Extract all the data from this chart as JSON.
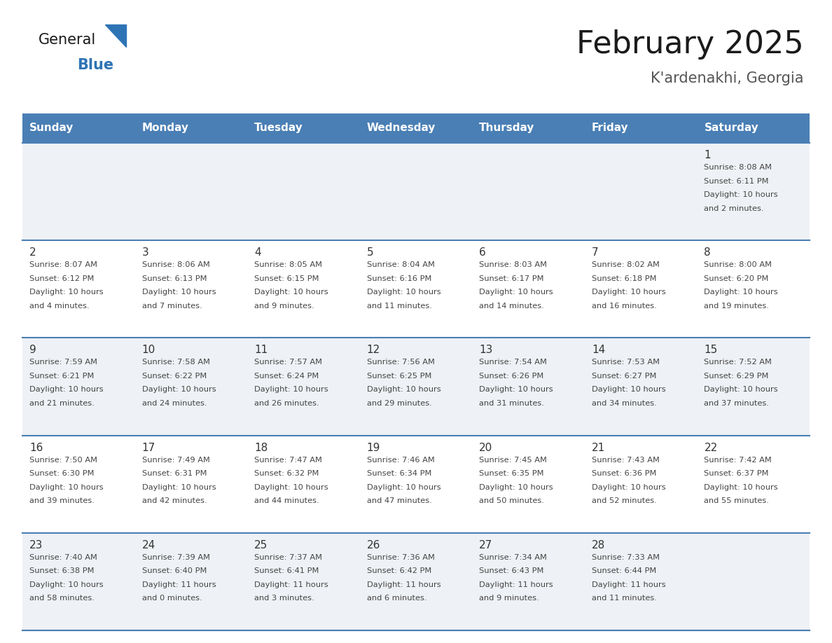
{
  "title": "February 2025",
  "subtitle": "K'ardenakhi, Georgia",
  "days_of_week": [
    "Sunday",
    "Monday",
    "Tuesday",
    "Wednesday",
    "Thursday",
    "Friday",
    "Saturday"
  ],
  "header_bg": "#4a7fb5",
  "header_text_color": "#ffffff",
  "cell_bg_light": "#eef1f5",
  "cell_bg_white": "#ffffff",
  "row_line_color": "#4a7fb5",
  "text_color": "#444444",
  "day_num_color": "#333333",
  "title_color": "#1a1a1a",
  "subtitle_color": "#555555",
  "logo_general_color": "#1a1a1a",
  "logo_blue_color": "#2e74b5",
  "calendar_data": [
    [
      {
        "day": null,
        "info": null
      },
      {
        "day": null,
        "info": null
      },
      {
        "day": null,
        "info": null
      },
      {
        "day": null,
        "info": null
      },
      {
        "day": null,
        "info": null
      },
      {
        "day": null,
        "info": null
      },
      {
        "day": 1,
        "info": "Sunrise: 8:08 AM\nSunset: 6:11 PM\nDaylight: 10 hours\nand 2 minutes."
      }
    ],
    [
      {
        "day": 2,
        "info": "Sunrise: 8:07 AM\nSunset: 6:12 PM\nDaylight: 10 hours\nand 4 minutes."
      },
      {
        "day": 3,
        "info": "Sunrise: 8:06 AM\nSunset: 6:13 PM\nDaylight: 10 hours\nand 7 minutes."
      },
      {
        "day": 4,
        "info": "Sunrise: 8:05 AM\nSunset: 6:15 PM\nDaylight: 10 hours\nand 9 minutes."
      },
      {
        "day": 5,
        "info": "Sunrise: 8:04 AM\nSunset: 6:16 PM\nDaylight: 10 hours\nand 11 minutes."
      },
      {
        "day": 6,
        "info": "Sunrise: 8:03 AM\nSunset: 6:17 PM\nDaylight: 10 hours\nand 14 minutes."
      },
      {
        "day": 7,
        "info": "Sunrise: 8:02 AM\nSunset: 6:18 PM\nDaylight: 10 hours\nand 16 minutes."
      },
      {
        "day": 8,
        "info": "Sunrise: 8:00 AM\nSunset: 6:20 PM\nDaylight: 10 hours\nand 19 minutes."
      }
    ],
    [
      {
        "day": 9,
        "info": "Sunrise: 7:59 AM\nSunset: 6:21 PM\nDaylight: 10 hours\nand 21 minutes."
      },
      {
        "day": 10,
        "info": "Sunrise: 7:58 AM\nSunset: 6:22 PM\nDaylight: 10 hours\nand 24 minutes."
      },
      {
        "day": 11,
        "info": "Sunrise: 7:57 AM\nSunset: 6:24 PM\nDaylight: 10 hours\nand 26 minutes."
      },
      {
        "day": 12,
        "info": "Sunrise: 7:56 AM\nSunset: 6:25 PM\nDaylight: 10 hours\nand 29 minutes."
      },
      {
        "day": 13,
        "info": "Sunrise: 7:54 AM\nSunset: 6:26 PM\nDaylight: 10 hours\nand 31 minutes."
      },
      {
        "day": 14,
        "info": "Sunrise: 7:53 AM\nSunset: 6:27 PM\nDaylight: 10 hours\nand 34 minutes."
      },
      {
        "day": 15,
        "info": "Sunrise: 7:52 AM\nSunset: 6:29 PM\nDaylight: 10 hours\nand 37 minutes."
      }
    ],
    [
      {
        "day": 16,
        "info": "Sunrise: 7:50 AM\nSunset: 6:30 PM\nDaylight: 10 hours\nand 39 minutes."
      },
      {
        "day": 17,
        "info": "Sunrise: 7:49 AM\nSunset: 6:31 PM\nDaylight: 10 hours\nand 42 minutes."
      },
      {
        "day": 18,
        "info": "Sunrise: 7:47 AM\nSunset: 6:32 PM\nDaylight: 10 hours\nand 44 minutes."
      },
      {
        "day": 19,
        "info": "Sunrise: 7:46 AM\nSunset: 6:34 PM\nDaylight: 10 hours\nand 47 minutes."
      },
      {
        "day": 20,
        "info": "Sunrise: 7:45 AM\nSunset: 6:35 PM\nDaylight: 10 hours\nand 50 minutes."
      },
      {
        "day": 21,
        "info": "Sunrise: 7:43 AM\nSunset: 6:36 PM\nDaylight: 10 hours\nand 52 minutes."
      },
      {
        "day": 22,
        "info": "Sunrise: 7:42 AM\nSunset: 6:37 PM\nDaylight: 10 hours\nand 55 minutes."
      }
    ],
    [
      {
        "day": 23,
        "info": "Sunrise: 7:40 AM\nSunset: 6:38 PM\nDaylight: 10 hours\nand 58 minutes."
      },
      {
        "day": 24,
        "info": "Sunrise: 7:39 AM\nSunset: 6:40 PM\nDaylight: 11 hours\nand 0 minutes."
      },
      {
        "day": 25,
        "info": "Sunrise: 7:37 AM\nSunset: 6:41 PM\nDaylight: 11 hours\nand 3 minutes."
      },
      {
        "day": 26,
        "info": "Sunrise: 7:36 AM\nSunset: 6:42 PM\nDaylight: 11 hours\nand 6 minutes."
      },
      {
        "day": 27,
        "info": "Sunrise: 7:34 AM\nSunset: 6:43 PM\nDaylight: 11 hours\nand 9 minutes."
      },
      {
        "day": 28,
        "info": "Sunrise: 7:33 AM\nSunset: 6:44 PM\nDaylight: 11 hours\nand 11 minutes."
      },
      {
        "day": null,
        "info": null
      }
    ]
  ]
}
